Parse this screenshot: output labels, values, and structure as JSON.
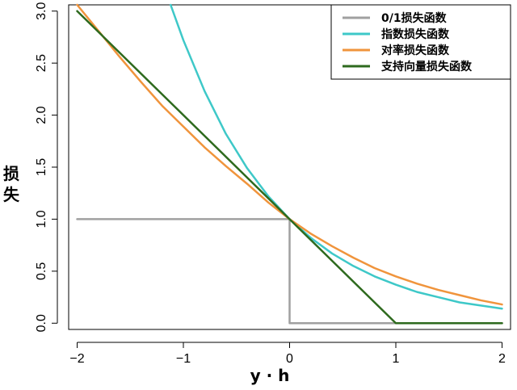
{
  "chart_data": {
    "type": "line",
    "title": "",
    "xlabel": "y · h",
    "ylabel": "损失",
    "xlim": [
      -2.08,
      2.08
    ],
    "ylim": [
      -0.06,
      3.06
    ],
    "x_ticks": [
      -2,
      -1,
      0,
      1,
      2
    ],
    "x_tick_labels": [
      "−2",
      "−1",
      "0",
      "1",
      "2"
    ],
    "y_ticks": [
      0.0,
      0.5,
      1.0,
      1.5,
      2.0,
      2.5,
      3.0
    ],
    "y_tick_labels": [
      "0.0",
      "0.5",
      "1.0",
      "1.5",
      "2.0",
      "2.5",
      "3.0"
    ],
    "grid": false,
    "legend_position": "top-right",
    "series": [
      {
        "name": "0/1损失函数",
        "color": "#a0a0a0",
        "x": [
          -2,
          0,
          0,
          2
        ],
        "y": [
          1,
          1,
          0,
          0
        ]
      },
      {
        "name": "指数损失函数",
        "color": "#3ec8c8",
        "x": [
          -1.12,
          -1.0,
          -0.8,
          -0.6,
          -0.4,
          -0.2,
          0.0,
          0.2,
          0.4,
          0.6,
          0.8,
          1.0,
          1.2,
          1.4,
          1.6,
          1.8,
          2.0
        ],
        "y": [
          3.06,
          2.72,
          2.23,
          1.82,
          1.49,
          1.22,
          1.0,
          0.82,
          0.67,
          0.55,
          0.45,
          0.37,
          0.3,
          0.25,
          0.2,
          0.17,
          0.14
        ]
      },
      {
        "name": "对率损失函数",
        "color": "#f0943c",
        "x": [
          -2.0,
          -1.8,
          -1.6,
          -1.4,
          -1.2,
          -1.0,
          -0.8,
          -0.6,
          -0.4,
          -0.2,
          0.0,
          0.2,
          0.4,
          0.6,
          0.8,
          1.0,
          1.2,
          1.4,
          1.6,
          1.8,
          2.0
        ],
        "y": [
          3.06,
          2.81,
          2.56,
          2.32,
          2.09,
          1.89,
          1.69,
          1.51,
          1.34,
          1.16,
          1.0,
          0.86,
          0.74,
          0.63,
          0.53,
          0.45,
          0.38,
          0.32,
          0.27,
          0.22,
          0.18
        ]
      },
      {
        "name": "支持向量损失函数",
        "color": "#2e6a1e",
        "x": [
          -2,
          1,
          2
        ],
        "y": [
          3,
          0,
          0
        ]
      }
    ]
  }
}
